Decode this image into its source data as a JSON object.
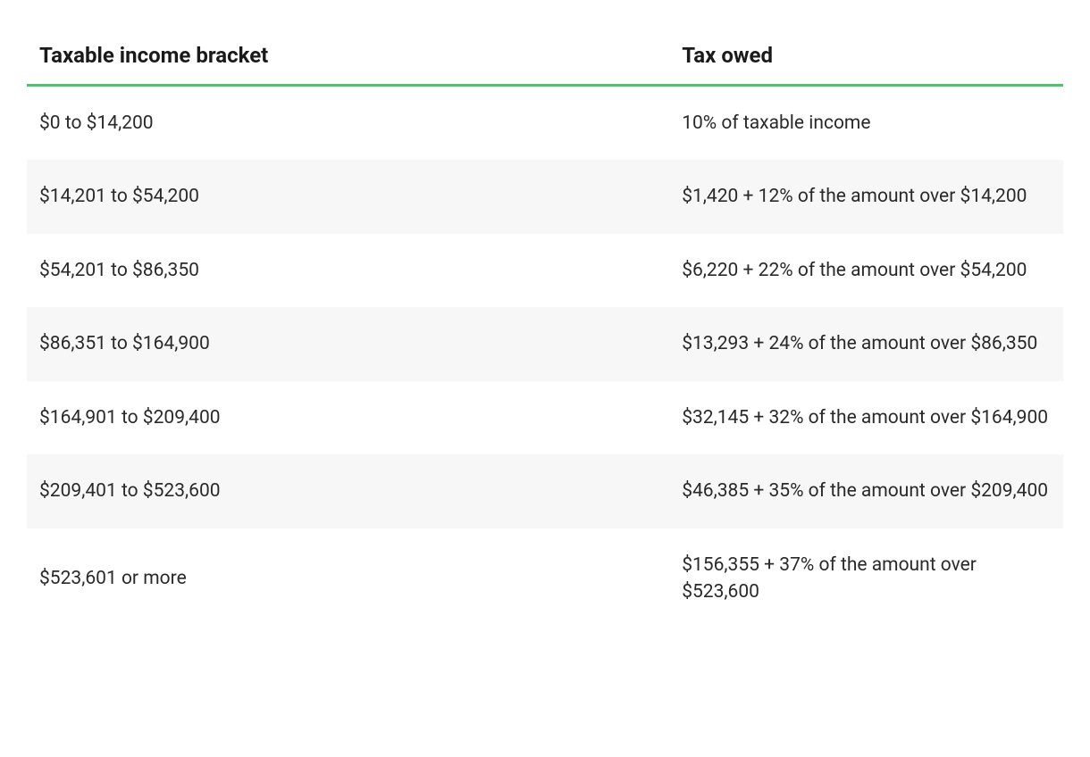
{
  "table": {
    "columns": [
      {
        "label": "Taxable income bracket",
        "width_pct": 62
      },
      {
        "label": "Tax owed",
        "width_pct": 38
      }
    ],
    "header_border_color": "#4fc26b",
    "header_font_size_pt": 18,
    "body_font_size_pt": 16,
    "alt_row_bg": "#f7f7f7",
    "text_color": "#1a1a1a",
    "rows": [
      {
        "bracket": "$0 to $14,200",
        "owed": "10% of taxable income"
      },
      {
        "bracket": "$14,201 to $54,200",
        "owed": "$1,420 + 12% of the amount over $14,200"
      },
      {
        "bracket": "$54,201 to $86,350",
        "owed": "$6,220 + 22% of the amount over $54,200"
      },
      {
        "bracket": "$86,351 to $164,900",
        "owed": "$13,293 + 24% of the amount over $86,350"
      },
      {
        "bracket": "$164,901 to $209,400",
        "owed": "$32,145 + 32% of the amount over $164,900"
      },
      {
        "bracket": "$209,401 to $523,600",
        "owed": "$46,385 + 35% of the amount over $209,400"
      },
      {
        "bracket": "$523,601 or more",
        "owed": "$156,355 + 37% of the amount over $523,600"
      }
    ]
  }
}
